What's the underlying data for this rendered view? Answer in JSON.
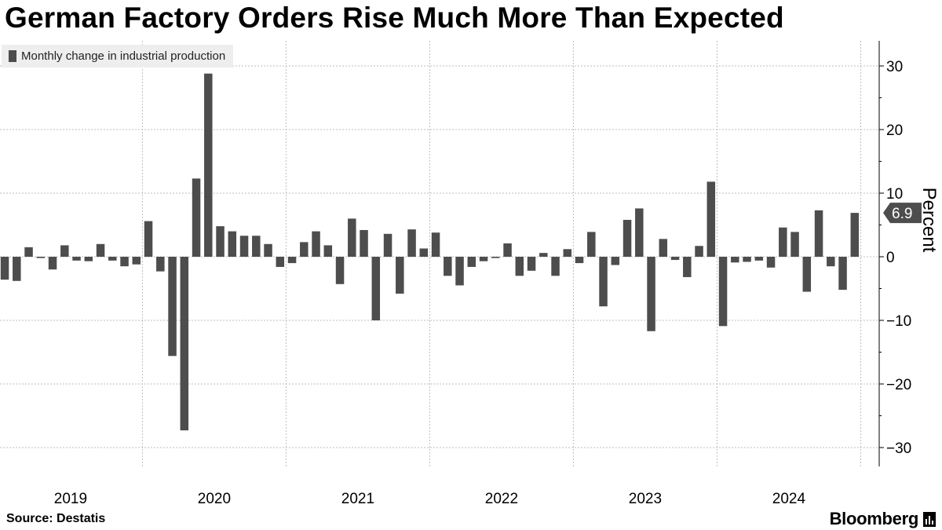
{
  "title": "German Factory Orders Rise Much More Than Expected",
  "source": "Source: Destatis",
  "brand": "Bloomberg",
  "colors": {
    "bar": "#4d4d4d",
    "grid": "#bdbdbd",
    "label_bg": "#4d4d4d"
  },
  "chart_data": {
    "type": "bar",
    "series": [
      {
        "name": "Monthly change in industrial production",
        "start": "2019-01",
        "values": [
          -3.6,
          -3.8,
          1.5,
          -0.2,
          -2.0,
          1.8,
          -0.6,
          -0.7,
          2.0,
          -0.6,
          -1.5,
          -1.2,
          5.6,
          -2.3,
          -15.6,
          -27.3,
          12.3,
          28.8,
          4.8,
          4.0,
          3.3,
          3.3,
          2.0,
          -1.6,
          -1.0,
          2.3,
          4.0,
          1.8,
          -4.3,
          6.0,
          4.2,
          -10.0,
          3.6,
          -5.8,
          4.3,
          1.3,
          3.8,
          -3.0,
          -4.5,
          -1.6,
          -0.7,
          -0.2,
          2.1,
          -3.0,
          -2.2,
          0.6,
          -3.0,
          1.2,
          -1.0,
          3.9,
          -7.8,
          -1.3,
          5.8,
          7.6,
          -11.7,
          2.8,
          -0.5,
          -3.2,
          1.7,
          11.8,
          -10.9,
          -0.9,
          -0.8,
          -0.6,
          -1.7,
          4.6,
          3.9,
          -5.5,
          7.3,
          -1.5,
          -5.2,
          6.9
        ]
      }
    ],
    "x_tick_labels": [
      "2019",
      "2020",
      "2021",
      "2022",
      "2023",
      "2024"
    ],
    "y_ticks": [
      30,
      20,
      10,
      0,
      -10,
      -20,
      -30
    ],
    "ylim": [
      -33,
      34
    ],
    "ylabel": "Percent",
    "last_value_label": "6.9",
    "grid": true,
    "legend_position": "top-left"
  }
}
